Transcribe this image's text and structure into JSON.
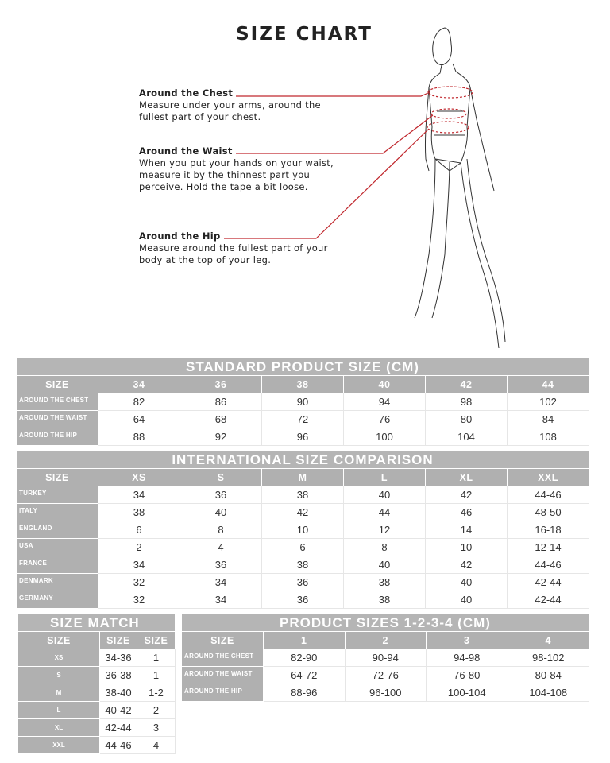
{
  "title": "SIZE CHART",
  "guides": [
    {
      "heading": "Around the Chest",
      "text": [
        "Measure under your arms, around the",
        "fullest part of your chest."
      ]
    },
    {
      "heading": "Around the Waist",
      "text": [
        "When you put your hands on your waist,",
        "measure it by the thinnest part you",
        "perceive. Hold the tape a bit loose."
      ]
    },
    {
      "heading": "Around the Hip",
      "text": [
        "Measure around the fullest part of your",
        "body at the top of your leg."
      ]
    }
  ],
  "colors": {
    "header_gray": "#b0b0b0",
    "guide_line": "#c0272d"
  },
  "tables": [
    {
      "caption": "STANDARD PRODUCT SIZE (CM)",
      "headers": [
        "SIZE",
        "34",
        "36",
        "38",
        "40",
        "42",
        "44"
      ],
      "rows": [
        [
          "AROUND THE CHEST",
          "82",
          "86",
          "90",
          "94",
          "98",
          "102"
        ],
        [
          "AROUND THE WAIST",
          "64",
          "68",
          "72",
          "76",
          "80",
          "84"
        ],
        [
          "AROUND THE HIP",
          "88",
          "92",
          "96",
          "100",
          "104",
          "108"
        ]
      ]
    },
    {
      "caption": "INTERNATIONAL SIZE COMPARISON",
      "headers": [
        "SIZE",
        "XS",
        "S",
        "M",
        "L",
        "XL",
        "XXL"
      ],
      "rows": [
        [
          "TURKEY",
          "34",
          "36",
          "38",
          "40",
          "42",
          "44-46"
        ],
        [
          "ITALY",
          "38",
          "40",
          "42",
          "44",
          "46",
          "48-50"
        ],
        [
          "ENGLAND",
          "6",
          "8",
          "10",
          "12",
          "14",
          "16-18"
        ],
        [
          "USA",
          "2",
          "4",
          "6",
          "8",
          "10",
          "12-14"
        ],
        [
          "FRANCE",
          "34",
          "36",
          "38",
          "40",
          "42",
          "44-46"
        ],
        [
          "DENMARK",
          "32",
          "34",
          "36",
          "38",
          "40",
          "42-44"
        ],
        [
          "GERMANY",
          "32",
          "34",
          "36",
          "38",
          "40",
          "42-44"
        ]
      ]
    },
    {
      "caption": "SIZE MATCH",
      "headers": [
        "SIZE",
        "SIZE",
        "SIZE"
      ],
      "rows": [
        [
          "XS",
          "34-36",
          "1"
        ],
        [
          "S",
          "36-38",
          "1"
        ],
        [
          "M",
          "38-40",
          "1-2"
        ],
        [
          "L",
          "40-42",
          "2"
        ],
        [
          "XL",
          "42-44",
          "3"
        ],
        [
          "XXL",
          "44-46",
          "4"
        ]
      ]
    },
    {
      "caption": "PRODUCT SIZES 1-2-3-4 (CM)",
      "headers": [
        "SIZE",
        "1",
        "2",
        "3",
        "4"
      ],
      "rows": [
        [
          "AROUND THE CHEST",
          "82-90",
          "90-94",
          "94-98",
          "98-102"
        ],
        [
          "AROUND THE WAIST",
          "64-72",
          "72-76",
          "76-80",
          "80-84"
        ],
        [
          "AROUND THE HIP",
          "88-96",
          "96-100",
          "100-104",
          "104-108"
        ]
      ]
    }
  ]
}
